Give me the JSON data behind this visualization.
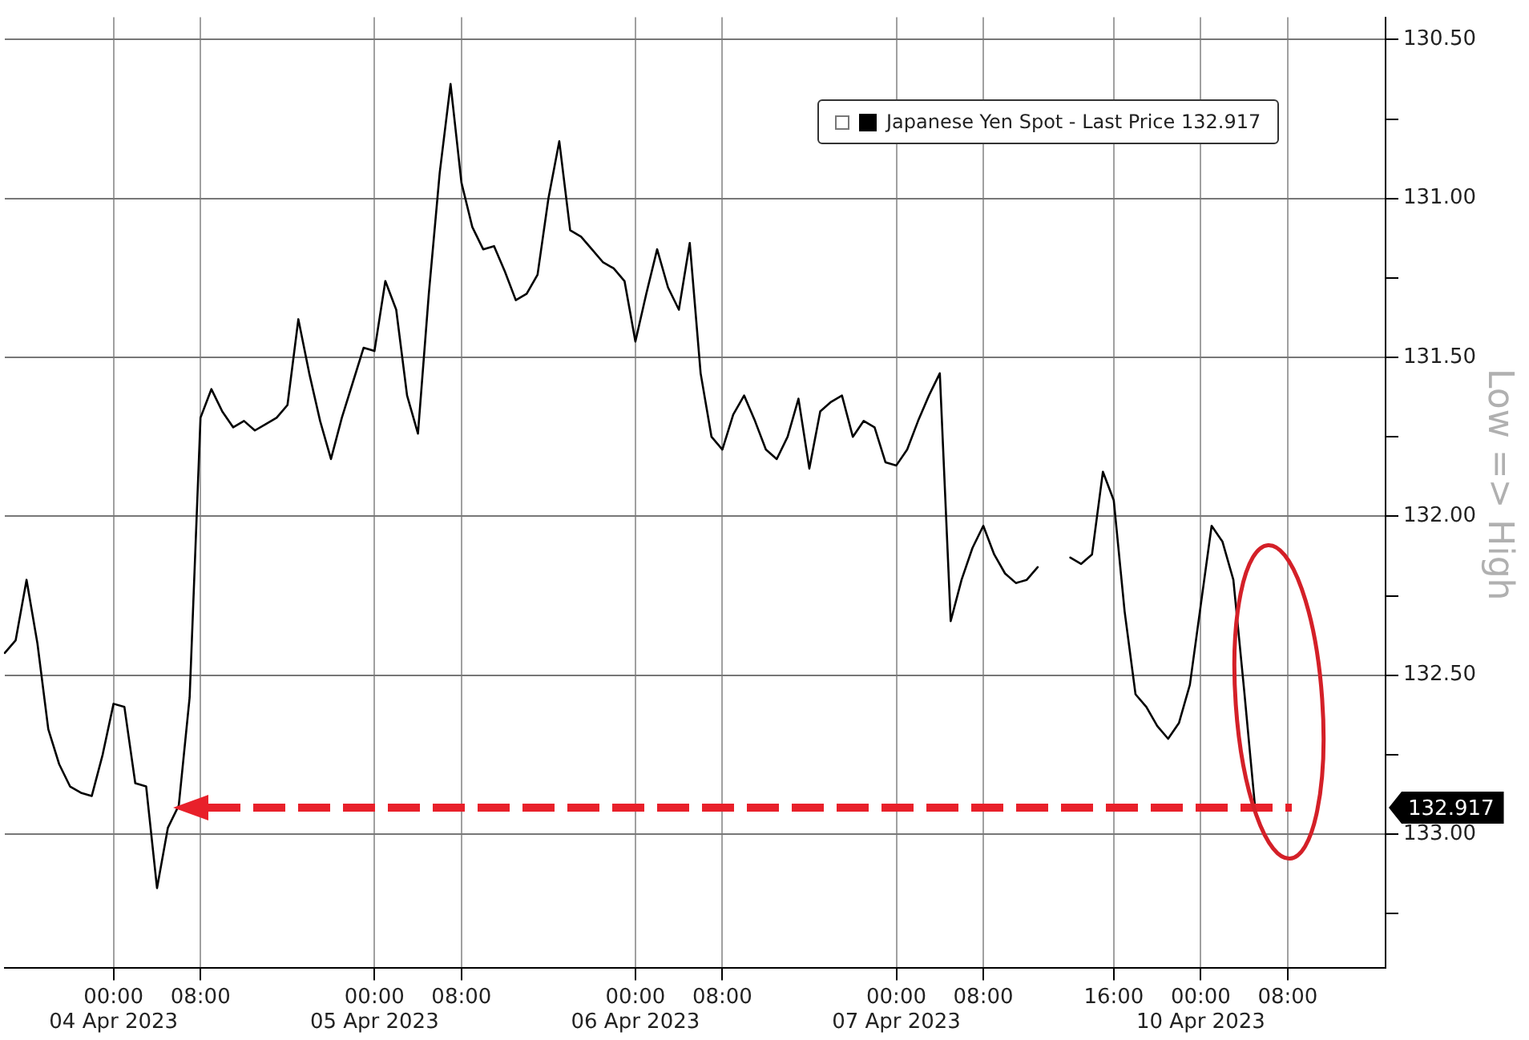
{
  "chart_data": {
    "type": "line",
    "ylabel": "Low => High",
    "legend": "top right",
    "grid": true,
    "marker": "none",
    "categories": [
      null,
      null,
      null,
      null,
      null,
      null,
      null,
      null,
      null,
      null,
      "00:00\n04 Apr 2023",
      null,
      null,
      null,
      null,
      null,
      null,
      null,
      "08:00",
      null,
      null,
      null,
      null,
      null,
      null,
      null,
      null,
      null,
      null,
      null,
      null,
      null,
      null,
      null,
      "00:00\n05 Apr 2023",
      null,
      null,
      null,
      null,
      null,
      null,
      null,
      "08:00",
      null,
      null,
      null,
      null,
      null,
      null,
      null,
      null,
      null,
      null,
      null,
      null,
      null,
      null,
      null,
      "00:00\n06 Apr 2023",
      null,
      null,
      null,
      null,
      null,
      null,
      null,
      "08:00",
      null,
      null,
      null,
      null,
      null,
      null,
      null,
      null,
      null,
      null,
      null,
      null,
      null,
      null,
      null,
      "00:00\n07 Apr 2023",
      null,
      null,
      null,
      null,
      null,
      null,
      null,
      "08:00",
      null,
      null,
      null,
      null,
      null,
      null,
      null,
      null,
      null,
      null,
      null,
      "16:00",
      null,
      null,
      null,
      null,
      null,
      null,
      null,
      "00:00\n10 Apr 2023",
      null,
      null,
      null,
      null,
      null,
      null,
      null,
      "08:00",
      null,
      null,
      null,
      null,
      null,
      null,
      null,
      null,
      null
    ],
    "ylim": [
      133.42,
      130.43
    ],
    "yticks": [
      {
        "value": 130.5,
        "label": "130.50"
      },
      {
        "value": 130.75,
        "label": null
      },
      {
        "value": 131.0,
        "label": "131.00"
      },
      {
        "value": 131.25,
        "label": null
      },
      {
        "value": 131.5,
        "label": "131.50"
      },
      {
        "value": 131.75,
        "label": null
      },
      {
        "value": 132.0,
        "label": "132.00"
      },
      {
        "value": 132.25,
        "label": null
      },
      {
        "value": 132.5,
        "label": "132.50"
      },
      {
        "value": 132.75,
        "label": null
      },
      {
        "value": 133.0,
        "label": "133.00"
      },
      {
        "value": 133.25,
        "label": null
      }
    ],
    "annotations": [
      "132.917"
    ],
    "series": [
      {
        "name": "Japanese Yen Spot - Last Price 132.917",
        "color": "#000000",
        "values": [
          132.43,
          132.39,
          132.2,
          132.4,
          132.67,
          132.78,
          132.85,
          132.87,
          132.88,
          132.75,
          132.59,
          132.6,
          132.84,
          132.85,
          133.17,
          132.98,
          132.91,
          132.57,
          131.69,
          131.6,
          131.67,
          131.72,
          131.7,
          131.73,
          131.71,
          131.69,
          131.65,
          131.38,
          131.55,
          131.7,
          131.82,
          131.69,
          131.58,
          131.47,
          131.48,
          131.26,
          131.35,
          131.62,
          131.74,
          131.3,
          130.92,
          130.64,
          130.95,
          131.09,
          131.16,
          131.15,
          131.23,
          131.32,
          131.3,
          131.24,
          131.0,
          130.82,
          131.1,
          131.12,
          131.16,
          131.2,
          131.22,
          131.26,
          131.45,
          131.3,
          131.16,
          131.28,
          131.35,
          131.14,
          131.55,
          131.75,
          131.79,
          131.68,
          131.62,
          131.7,
          131.79,
          131.82,
          131.75,
          131.63,
          131.85,
          131.67,
          131.64,
          131.62,
          131.75,
          131.7,
          131.72,
          131.83,
          131.84,
          131.79,
          131.7,
          131.62,
          131.55,
          132.33,
          132.2,
          132.1,
          132.03,
          132.12,
          132.18,
          132.21,
          132.2,
          132.16,
          null,
          null,
          132.13,
          132.15,
          132.12,
          131.86,
          131.95,
          132.3,
          132.56,
          132.6,
          132.66,
          132.7,
          132.65,
          132.53,
          132.28,
          132.03,
          132.08,
          132.2,
          132.55,
          132.917,
          null,
          null,
          null,
          null,
          null,
          null,
          null,
          null,
          null,
          null,
          null,
          null
        ]
      }
    ]
  }
}
